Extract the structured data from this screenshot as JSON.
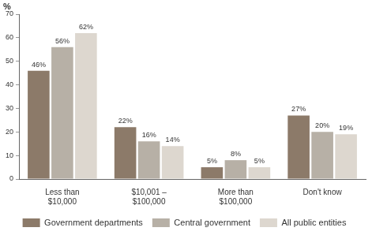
{
  "chart_data": {
    "type": "bar",
    "ylabel": "%",
    "categories": [
      "Less than\n$10,000",
      "$10,001 –\n$100,000",
      "More than\n$100,000",
      "Don't know"
    ],
    "series": [
      {
        "name": "Government departments",
        "color": "#8c7a69",
        "values": [
          46,
          22,
          5,
          27
        ],
        "value_labels": [
          "46%",
          "22%",
          "5%",
          "27%"
        ]
      },
      {
        "name": "Central government",
        "color": "#b7b0a6",
        "values": [
          56,
          16,
          8,
          20
        ],
        "value_labels": [
          "56%",
          "16%",
          "8%",
          "20%"
        ]
      },
      {
        "name": "All public entities",
        "color": "#ddd7cf",
        "values": [
          62,
          14,
          5,
          19
        ],
        "value_labels": [
          "62%",
          "14%",
          "5%",
          "19%"
        ]
      }
    ],
    "ylim": [
      0,
      70
    ],
    "yticks": [
      0,
      10,
      20,
      30,
      40,
      50,
      60,
      70
    ],
    "grid": false,
    "legend": "bottom",
    "data_labels": true
  }
}
